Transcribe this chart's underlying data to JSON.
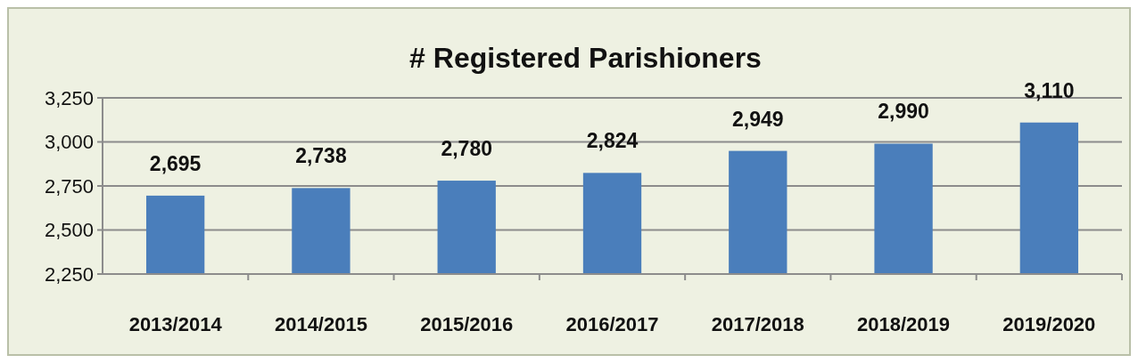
{
  "chart_data": {
    "type": "bar",
    "title": "# Registered Parishioners",
    "categories": [
      "2013/2014",
      "2014/2015",
      "2015/2016",
      "2016/2017",
      "2017/2018",
      "2018/2019",
      "2019/2020"
    ],
    "values": [
      2695,
      2738,
      2780,
      2824,
      2949,
      2990,
      3110
    ],
    "color": "#4a7ebb",
    "ylim": [
      2250,
      3250
    ],
    "yticks": [
      {
        "value": 2250,
        "label": "2,250"
      },
      {
        "value": 2500,
        "label": "2,500"
      },
      {
        "value": 2750,
        "label": "2,750"
      },
      {
        "value": 3000,
        "label": "3,000"
      },
      {
        "value": 3250,
        "label": "3,250"
      }
    ],
    "value_labels": [
      "2,695",
      "2,738",
      "2,780",
      "2,824",
      "2,949",
      "2,990",
      "3,110"
    ],
    "grid": "y"
  }
}
